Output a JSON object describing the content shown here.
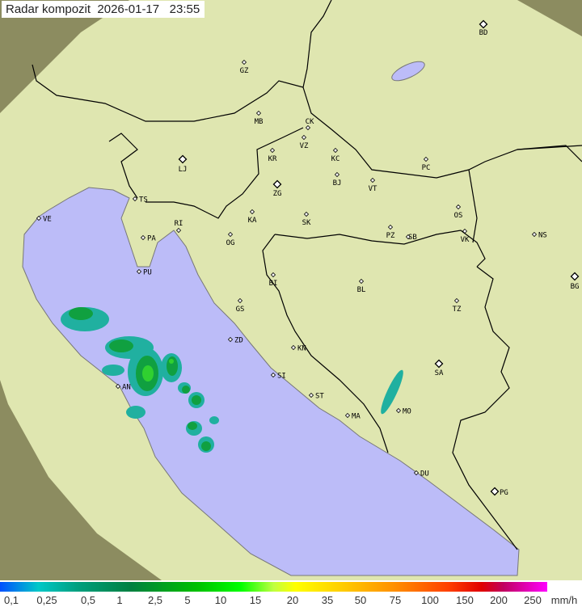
{
  "header": {
    "title": "Radar kompozit",
    "date": "2026-01-17",
    "time": "23:55"
  },
  "colors": {
    "sea": "#bcbcf8",
    "land": "#dfe6b0",
    "outside": "#8c8c60",
    "border": "#000000"
  },
  "cities": [
    {
      "code": "BD",
      "big": true
    },
    {
      "code": "GZ"
    },
    {
      "code": "MB"
    },
    {
      "code": "CK"
    },
    {
      "code": "VZ"
    },
    {
      "code": "KR"
    },
    {
      "code": "KC"
    },
    {
      "code": "PC"
    },
    {
      "code": "LJ",
      "big": true
    },
    {
      "code": "BJ"
    },
    {
      "code": "VT"
    },
    {
      "code": "ZG",
      "big": true
    },
    {
      "code": "TS"
    },
    {
      "code": "VE"
    },
    {
      "code": "KA"
    },
    {
      "code": "RI"
    },
    {
      "code": "SK"
    },
    {
      "code": "OS"
    },
    {
      "code": "PA"
    },
    {
      "code": "OG"
    },
    {
      "code": "PZ"
    },
    {
      "code": "SB"
    },
    {
      "code": "VK"
    },
    {
      "code": "NS"
    },
    {
      "code": "PU"
    },
    {
      "code": "BI"
    },
    {
      "code": "BL"
    },
    {
      "code": "BG",
      "big": true
    },
    {
      "code": "TZ"
    },
    {
      "code": "GS"
    },
    {
      "code": "ZD"
    },
    {
      "code": "KN"
    },
    {
      "code": "SA",
      "big": true
    },
    {
      "code": "SI"
    },
    {
      "code": "AN"
    },
    {
      "code": "ST"
    },
    {
      "code": "MO"
    },
    {
      "code": "MA"
    },
    {
      "code": "DU"
    },
    {
      "code": "PG",
      "big": true
    }
  ],
  "legend": {
    "unit": "mm/h",
    "ticks": [
      "0,1",
      "0,25",
      "0,5",
      "1",
      "2,5",
      "5",
      "10",
      "15",
      "20",
      "35",
      "50",
      "75",
      "100",
      "150",
      "200",
      "250"
    ]
  }
}
